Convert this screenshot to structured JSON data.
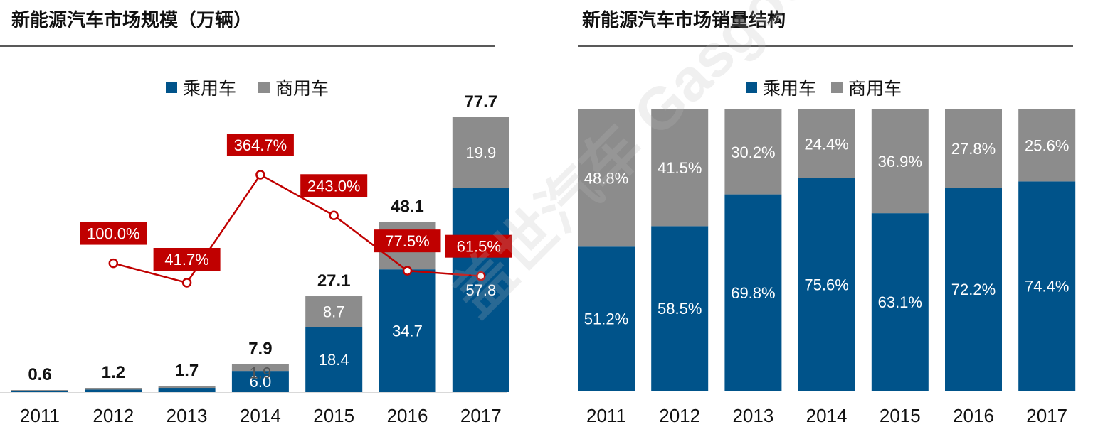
{
  "left_panel": {
    "title": "新能源汽车市场规模（万辆）"
  },
  "right_panel": {
    "title": "新能源汽车市场销量结构"
  },
  "legend": {
    "passenger_label": "乘用车",
    "commercial_label": "商用车"
  },
  "colors": {
    "passenger": "#00538A",
    "commercial": "#8C8C8C",
    "growth": "#C00000",
    "rule": "#595959"
  },
  "watermark": {
    "text": "盖世汽车 Gasgoo"
  },
  "chart_data": [
    {
      "type": "bar",
      "stacked": true,
      "title": "新能源汽车市场规模（万辆）",
      "categories": [
        "2011",
        "2012",
        "2013",
        "2014",
        "2015",
        "2016",
        "2017"
      ],
      "series": [
        {
          "name": "乘用车",
          "values": [
            0.3,
            0.7,
            1.2,
            6.0,
            18.4,
            34.7,
            57.8
          ],
          "labels": [
            "",
            "",
            "",
            "6.0",
            "18.4",
            "34.7",
            "57.8"
          ]
        },
        {
          "name": "商用车",
          "values": [
            0.3,
            0.5,
            0.5,
            1.9,
            8.7,
            13.4,
            19.9
          ],
          "labels": [
            "",
            "",
            "",
            "1.9",
            "8.7",
            "13.4",
            "19.9"
          ]
        }
      ],
      "totals": [
        "0.6",
        "1.2",
        "1.7",
        "7.9",
        "27.1",
        "48.1",
        "77.7"
      ],
      "growth": {
        "categories": [
          "2012",
          "2013",
          "2014",
          "2015",
          "2016",
          "2017"
        ],
        "values": [
          100.0,
          41.7,
          364.7,
          243.0,
          77.5,
          61.5
        ],
        "labels": [
          "100.0%",
          "41.7%",
          "364.7%",
          "243.0%",
          "77.5%",
          "61.5%"
        ]
      },
      "ylim": [
        0,
        80
      ],
      "legend": "top-center",
      "grid": false
    },
    {
      "type": "bar",
      "stacked": true,
      "percent": true,
      "title": "新能源汽车市场销量结构",
      "categories": [
        "2011",
        "2012",
        "2013",
        "2014",
        "2015",
        "2016",
        "2017"
      ],
      "series": [
        {
          "name": "乘用车",
          "values": [
            51.2,
            58.5,
            69.8,
            75.6,
            63.1,
            72.2,
            74.4
          ],
          "labels": [
            "51.2%",
            "58.5%",
            "69.8%",
            "75.6%",
            "63.1%",
            "72.2%",
            "74.4%"
          ]
        },
        {
          "name": "商用车",
          "values": [
            48.8,
            41.5,
            30.2,
            24.4,
            36.9,
            27.8,
            25.6
          ],
          "labels": [
            "48.8%",
            "41.5%",
            "30.2%",
            "24.4%",
            "36.9%",
            "27.8%",
            "25.6%"
          ]
        }
      ],
      "ylim": [
        0,
        100
      ],
      "legend": "top-center",
      "grid": false
    }
  ]
}
